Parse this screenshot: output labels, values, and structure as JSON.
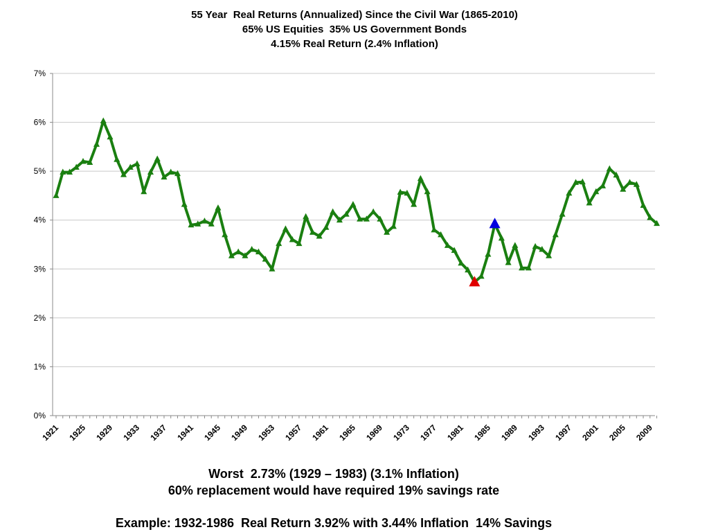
{
  "title_lines": [
    "55 Year  Real Returns (Annualized) Since the Civil War (1865-2010)",
    "65% US Equities  35% US Government Bonds",
    "4.15% Real Return (2.4% Inflation)"
  ],
  "notes": {
    "line1": "Worst  2.73% (1929 – 1983) (3.1% Inflation)",
    "line2": "60% replacement would have required 19% savings rate",
    "line3": "Example: 1932-1986  Real Return 3.92% with 3.44% Inflation  14% Savings"
  },
  "chart_data": {
    "type": "line",
    "xlabel": "",
    "ylabel": "",
    "ylim": [
      0,
      7
    ],
    "yticks": [
      "0%",
      "1%",
      "2%",
      "3%",
      "4%",
      "5%",
      "6%",
      "7%"
    ],
    "xtick_labels": [
      "1921",
      "1925",
      "1929",
      "1933",
      "1937",
      "1941",
      "1945",
      "1949",
      "1953",
      "1957",
      "1961",
      "1965",
      "1969",
      "1973",
      "1977",
      "1981",
      "1985",
      "1989",
      "1993",
      "1997",
      "2001",
      "2005",
      "2009"
    ],
    "grid": "horizontal",
    "legend": "none",
    "colors": {
      "line": "#1a7f10",
      "worst_marker": "#e00000",
      "example_marker": "#0000e0",
      "grid": "#c8c8c8"
    },
    "x": [
      1921,
      1922,
      1923,
      1924,
      1925,
      1926,
      1927,
      1928,
      1929,
      1930,
      1931,
      1932,
      1933,
      1934,
      1935,
      1936,
      1937,
      1938,
      1939,
      1940,
      1941,
      1942,
      1943,
      1944,
      1945,
      1946,
      1947,
      1948,
      1949,
      1950,
      1951,
      1952,
      1953,
      1954,
      1955,
      1956,
      1957,
      1958,
      1959,
      1960,
      1961,
      1962,
      1963,
      1964,
      1965,
      1966,
      1967,
      1968,
      1969,
      1970,
      1971,
      1972,
      1973,
      1974,
      1975,
      1976,
      1977,
      1978,
      1979,
      1980,
      1981,
      1982,
      1983,
      1984,
      1985,
      1986,
      1987,
      1988,
      1989,
      1990,
      1991,
      1992,
      1993,
      1994,
      1995,
      1996,
      1997,
      1998,
      1999,
      2000,
      2001,
      2002,
      2003,
      2004,
      2005,
      2006,
      2007,
      2008,
      2009,
      2010
    ],
    "series": [
      {
        "values": [
          4.5,
          4.98,
          4.98,
          5.08,
          5.2,
          5.18,
          5.55,
          6.03,
          5.7,
          5.24,
          4.93,
          5.08,
          5.15,
          4.58,
          4.98,
          5.25,
          4.88,
          4.98,
          4.95,
          4.32,
          3.9,
          3.92,
          3.98,
          3.92,
          4.25,
          3.7,
          3.27,
          3.35,
          3.27,
          3.4,
          3.35,
          3.2,
          3.0,
          3.52,
          3.82,
          3.6,
          3.52,
          4.07,
          3.75,
          3.67,
          3.85,
          4.17,
          4.0,
          4.12,
          4.32,
          4.02,
          4.02,
          4.17,
          4.02,
          3.75,
          3.87,
          4.57,
          4.55,
          4.32,
          4.85,
          4.58,
          3.8,
          3.7,
          3.48,
          3.38,
          3.12,
          2.98,
          2.73,
          2.85,
          3.3,
          3.92,
          3.63,
          3.13,
          3.48,
          3.02,
          3.02,
          3.46,
          3.4,
          3.27,
          3.7,
          4.12,
          4.55,
          4.77,
          4.78,
          4.35,
          4.58,
          4.7,
          5.05,
          4.92,
          4.63,
          4.77,
          4.73,
          4.3,
          4.05,
          3.93
        ]
      }
    ],
    "highlights": [
      {
        "x": 1983,
        "y": 2.73,
        "color": "#e00000"
      },
      {
        "x": 1986,
        "y": 3.92,
        "color": "#0000e0"
      }
    ]
  }
}
